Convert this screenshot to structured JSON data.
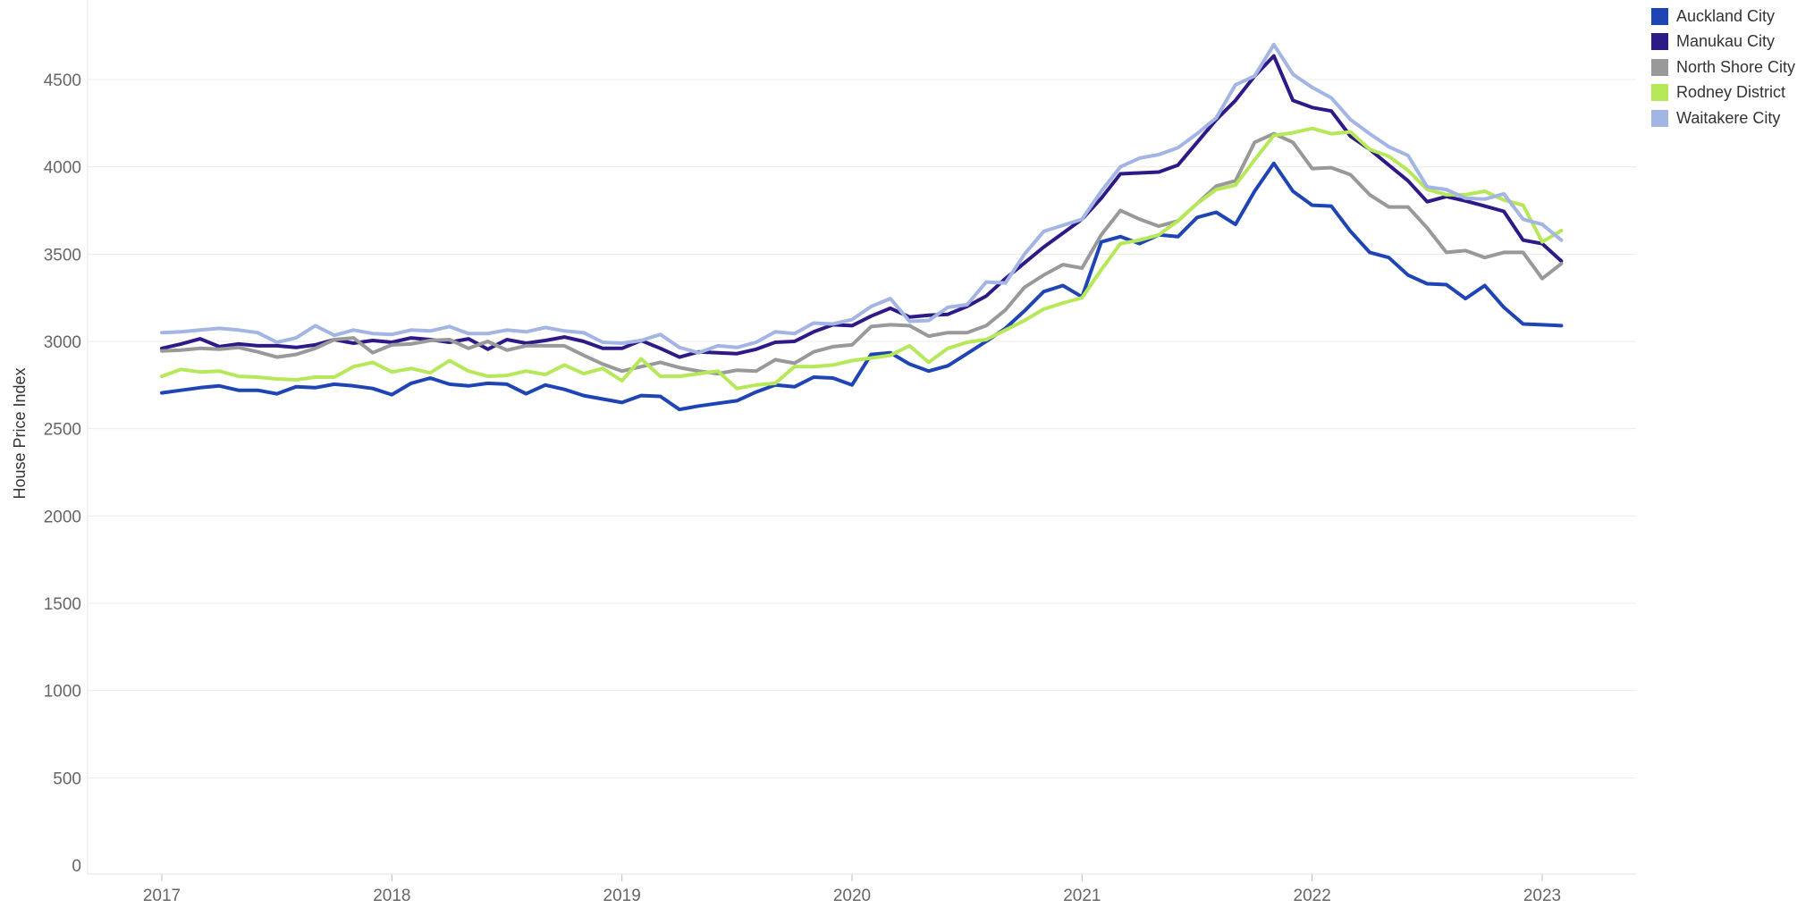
{
  "chart_data": {
    "type": "line",
    "ylabel": "House Price Index",
    "xlabel": "",
    "ylim": [
      0,
      4750
    ],
    "yticks": [
      0,
      500,
      1000,
      1500,
      2000,
      2500,
      3000,
      3500,
      4000,
      4500
    ],
    "xlim": [
      2016.67,
      2023.45
    ],
    "xticks": [
      "2017",
      "2018",
      "2019",
      "2020",
      "2021",
      "2022",
      "2023"
    ],
    "grid": true,
    "legend_position": "top-right",
    "x": [
      2017.0,
      2017.0833,
      2017.1667,
      2017.25,
      2017.3333,
      2017.4167,
      2017.5,
      2017.5833,
      2017.6667,
      2017.75,
      2017.8333,
      2017.9167,
      2018.0,
      2018.0833,
      2018.1667,
      2018.25,
      2018.3333,
      2018.4167,
      2018.5,
      2018.5833,
      2018.6667,
      2018.75,
      2018.8333,
      2018.9167,
      2019.0,
      2019.0833,
      2019.1667,
      2019.25,
      2019.3333,
      2019.4167,
      2019.5,
      2019.5833,
      2019.6667,
      2019.75,
      2019.8333,
      2019.9167,
      2020.0,
      2020.0833,
      2020.1667,
      2020.25,
      2020.3333,
      2020.4167,
      2020.5,
      2020.5833,
      2020.6667,
      2020.75,
      2020.8333,
      2020.9167,
      2021.0,
      2021.0833,
      2021.1667,
      2021.25,
      2021.3333,
      2021.4167,
      2021.5,
      2021.5833,
      2021.6667,
      2021.75,
      2021.8333,
      2021.9167,
      2022.0,
      2022.0833,
      2022.1667,
      2022.25,
      2022.3333,
      2022.4167,
      2022.5,
      2022.5833,
      2022.6667,
      2022.75,
      2022.8333,
      2022.9167,
      2023.0,
      2023.0833
    ],
    "series": [
      {
        "name": "Auckland City",
        "color": "#1f45b5",
        "values": [
          2705,
          2720,
          2735,
          2745,
          2720,
          2720,
          2700,
          2740,
          2735,
          2755,
          2745,
          2730,
          2695,
          2760,
          2790,
          2755,
          2745,
          2760,
          2755,
          2700,
          2750,
          2725,
          2690,
          2670,
          2650,
          2690,
          2685,
          2610,
          2630,
          2645,
          2660,
          2710,
          2750,
          2740,
          2795,
          2790,
          2750,
          2925,
          2935,
          2870,
          2830,
          2860,
          2930,
          3000,
          3075,
          3175,
          3285,
          3320,
          3255,
          3570,
          3600,
          3560,
          3610,
          3600,
          3710,
          3740,
          3670,
          3860,
          4020,
          3860,
          3780,
          3775,
          3630,
          3510,
          3480,
          3380,
          3330,
          3325,
          3245,
          3320,
          3195,
          3100,
          3095,
          3090
        ]
      },
      {
        "name": "Manukau City",
        "color": "#2e1a87",
        "values": [
          2960,
          2985,
          3015,
          2970,
          2985,
          2975,
          2975,
          2965,
          2980,
          3010,
          2990,
          3005,
          2995,
          3020,
          3010,
          2995,
          3015,
          2955,
          3010,
          2990,
          3005,
          3025,
          3000,
          2960,
          2960,
          3005,
          2960,
          2910,
          2940,
          2935,
          2930,
          2955,
          2995,
          3000,
          3055,
          3095,
          3090,
          3145,
          3190,
          3140,
          3150,
          3155,
          3200,
          3260,
          3360,
          3450,
          3540,
          3620,
          3700,
          3820,
          3960,
          3965,
          3970,
          4010,
          4140,
          4270,
          4380,
          4520,
          4635,
          4380,
          4340,
          4320,
          4175,
          4100,
          4010,
          3920,
          3800,
          3830,
          3805,
          3775,
          3745,
          3580,
          3560,
          3460
        ]
      },
      {
        "name": "North Shore City",
        "color": "#999999",
        "values": [
          2945,
          2950,
          2960,
          2955,
          2965,
          2940,
          2910,
          2925,
          2960,
          3010,
          3020,
          2935,
          2980,
          2985,
          3005,
          3010,
          2960,
          3000,
          2950,
          2975,
          2975,
          2975,
          2920,
          2870,
          2830,
          2855,
          2880,
          2850,
          2830,
          2815,
          2835,
          2830,
          2895,
          2875,
          2940,
          2970,
          2980,
          3085,
          3095,
          3090,
          3030,
          3050,
          3050,
          3090,
          3180,
          3310,
          3380,
          3440,
          3420,
          3610,
          3750,
          3700,
          3660,
          3690,
          3790,
          3890,
          3920,
          4140,
          4190,
          4140,
          3990,
          3995,
          3955,
          3840,
          3770,
          3770,
          3650,
          3510,
          3520,
          3480,
          3510,
          3510,
          3360,
          3445
        ]
      },
      {
        "name": "Rodney District",
        "color": "#b6e85a",
        "values": [
          2800,
          2840,
          2825,
          2830,
          2800,
          2795,
          2785,
          2780,
          2795,
          2795,
          2855,
          2880,
          2825,
          2845,
          2820,
          2890,
          2830,
          2800,
          2805,
          2830,
          2810,
          2865,
          2815,
          2845,
          2775,
          2900,
          2800,
          2800,
          2815,
          2830,
          2730,
          2750,
          2760,
          2855,
          2855,
          2865,
          2890,
          2905,
          2920,
          2975,
          2880,
          2960,
          2995,
          3010,
          3065,
          3120,
          3185,
          3220,
          3250,
          3410,
          3560,
          3580,
          3610,
          3690,
          3790,
          3870,
          3895,
          4040,
          4180,
          4195,
          4220,
          4190,
          4200,
          4100,
          4060,
          3980,
          3870,
          3840,
          3840,
          3860,
          3810,
          3780,
          3570,
          3635
        ]
      },
      {
        "name": "Waitakere City",
        "color": "#a3b5e3",
        "values": [
          3050,
          3055,
          3065,
          3075,
          3065,
          3050,
          2995,
          3020,
          3090,
          3035,
          3065,
          3045,
          3040,
          3065,
          3060,
          3085,
          3045,
          3045,
          3065,
          3055,
          3080,
          3060,
          3050,
          2995,
          2990,
          3005,
          3040,
          2965,
          2935,
          2975,
          2965,
          2995,
          3055,
          3045,
          3105,
          3100,
          3125,
          3200,
          3245,
          3115,
          3120,
          3195,
          3210,
          3340,
          3335,
          3500,
          3630,
          3665,
          3700,
          3860,
          4000,
          4050,
          4070,
          4110,
          4190,
          4280,
          4470,
          4520,
          4700,
          4530,
          4455,
          4395,
          4270,
          4190,
          4115,
          4065,
          3885,
          3870,
          3820,
          3815,
          3845,
          3700,
          3670,
          3580
        ]
      }
    ]
  }
}
